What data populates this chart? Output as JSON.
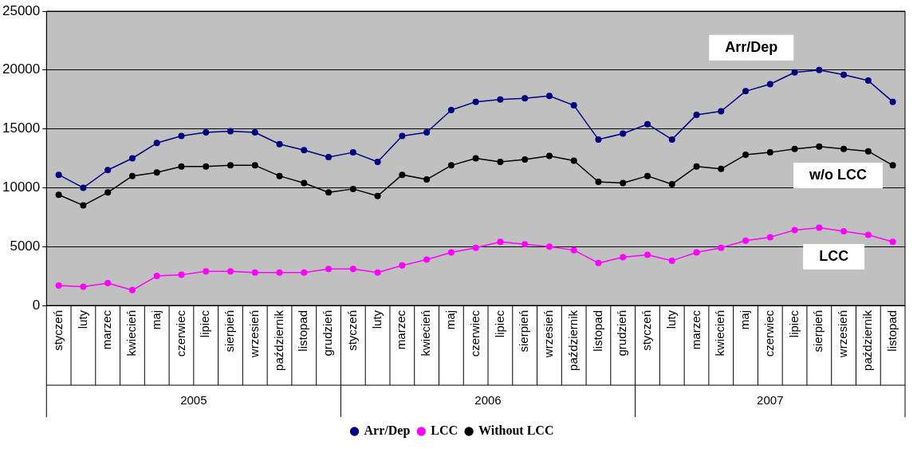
{
  "chart_data": {
    "type": "line",
    "categories": [
      "styczeń",
      "luty",
      "marzec",
      "kwiecień",
      "maj",
      "czerwiec",
      "lipiec",
      "sierpień",
      "wrzesień",
      "październik",
      "listopad",
      "grudzień",
      "styczeń",
      "luty",
      "marzec",
      "kwiecień",
      "maj",
      "czerwiec",
      "lipiec",
      "sierpień",
      "wrzesień",
      "październik",
      "listopad",
      "grudzień",
      "styczeń",
      "luty",
      "marzec",
      "kwiecień",
      "maj",
      "czerwiec",
      "lipiec",
      "sierpień",
      "wrzesień",
      "październik",
      "listopad"
    ],
    "series": [
      {
        "name": "Arr/Dep",
        "color": "#000080",
        "values": [
          11100,
          10000,
          11500,
          12500,
          13800,
          14400,
          14700,
          14800,
          14700,
          13700,
          13200,
          12600,
          13000,
          12200,
          14400,
          14700,
          16600,
          17300,
          17500,
          17600,
          17800,
          17000,
          14100,
          14600,
          15400,
          14100,
          16200,
          16500,
          18200,
          18800,
          19800,
          20000,
          19600,
          19100,
          17300
        ]
      },
      {
        "name": "LCC",
        "color": "#ff00ff",
        "values": [
          1700,
          1600,
          1900,
          1300,
          2500,
          2600,
          2900,
          2900,
          2800,
          2800,
          2800,
          3100,
          3100,
          2800,
          3400,
          3900,
          4500,
          4900,
          5400,
          5200,
          5000,
          4700,
          3600,
          4100,
          4300,
          3800,
          4500,
          4900,
          5500,
          5800,
          6400,
          6600,
          6300,
          6000,
          5400
        ]
      },
      {
        "name": "Without LCC",
        "color": "#000000",
        "values": [
          9400,
          8500,
          9600,
          11000,
          11300,
          11800,
          11800,
          11900,
          11900,
          11000,
          10400,
          9600,
          9900,
          9300,
          11100,
          10700,
          11900,
          12500,
          12200,
          12400,
          12700,
          12300,
          10500,
          10400,
          11000,
          10300,
          11800,
          11600,
          12800,
          13000,
          13300,
          13500,
          13300,
          13100,
          11900
        ]
      }
    ],
    "ylim": [
      0,
      25000
    ],
    "yticks": [
      0,
      5000,
      10000,
      15000,
      20000,
      25000
    ],
    "grid": "y",
    "legend": "bottom",
    "marker": "circle",
    "line_style": "solid",
    "annotations": [
      "2005",
      "2006",
      "2007",
      "Arr/Dep",
      "w/o LCC",
      "LCC"
    ]
  }
}
